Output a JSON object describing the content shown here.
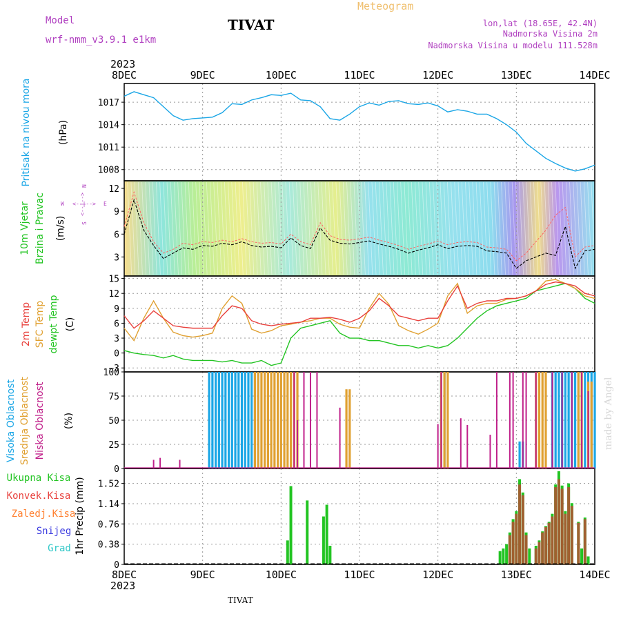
{
  "header": {
    "model_label": "Model",
    "model_name": "wrf-nmm_v3.9.1  e1km",
    "station": "TIVAT",
    "product": "Meteogram",
    "lonlat": "lon,lat (18.65E, 42.4N)",
    "altitude": "Nadmorska Visina 2m",
    "model_altitude": "Nadmorska Visina u modelu 111.528m",
    "watermark": "made by Angel",
    "footer_station": "TIVAT"
  },
  "colors": {
    "pressure": "#1aa6e6",
    "temp2m": "#e8403c",
    "sfc_temp": "#e0a030",
    "dewpoint": "#22c422",
    "high_cloud": "#1aa6e6",
    "mid_cloud": "#e0a030",
    "low_cloud": "#c0208a",
    "total_precip": "#22c422",
    "conv_precip": "#e8403c",
    "frozen_precip": "#ff8030",
    "snow": "#3a3ae0",
    "hail": "#30c8c8",
    "title_purple": "#b040c0",
    "meteogram_orange": "#f0c070"
  },
  "time_axis": {
    "year": "2023",
    "labels": [
      "8DEC",
      "9DEC",
      "10DEC",
      "11DEC",
      "12DEC",
      "13DEC",
      "14DEC"
    ]
  },
  "chart_data": [
    {
      "type": "line",
      "panel": "pressure",
      "ylabel": "Pritisak na nivou mora",
      "unit": "(hPa)",
      "ylim": [
        1006.5,
        1019.5
      ],
      "yticks": [
        "1017",
        "1014",
        "1011",
        "1008"
      ],
      "ytick_values": [
        1017,
        1014,
        1011,
        1008
      ],
      "x_hours": [
        0,
        3,
        6,
        9,
        12,
        15,
        18,
        21,
        24,
        27,
        30,
        33,
        36,
        39,
        42,
        45,
        48,
        51,
        54,
        57,
        60,
        63,
        66,
        69,
        72,
        75,
        78,
        81,
        84,
        87,
        90,
        93,
        96,
        99,
        102,
        105,
        108,
        111,
        114,
        117,
        120,
        123,
        126,
        129,
        132,
        135,
        138,
        141,
        144
      ],
      "series": [
        {
          "values": [
            1017.8,
            1018.4,
            1018.0,
            1017.6,
            1016.4,
            1015.2,
            1014.6,
            1014.8,
            1014.9,
            1015.0,
            1015.6,
            1016.8,
            1016.7,
            1017.3,
            1017.6,
            1018.0,
            1017.9,
            1018.2,
            1017.3,
            1017.2,
            1016.4,
            1014.8,
            1014.6,
            1015.4,
            1016.4,
            1016.9,
            1016.6,
            1017.1,
            1017.2,
            1016.8,
            1016.7,
            1016.9,
            1016.5,
            1015.7,
            1016.0,
            1015.8,
            1015.4,
            1015.4,
            1014.8,
            1014.0,
            1013.0,
            1011.5,
            1010.5,
            1009.5,
            1008.8,
            1008.2,
            1007.8,
            1008.1,
            1008.6
          ]
        }
      ]
    },
    {
      "type": "line",
      "panel": "wind",
      "ylabel": "10m Vjetar",
      "ylabel2": "Brzina i Pravac",
      "unit": "(m/s)",
      "compass": {
        "n": "N",
        "s": "S",
        "e": "E",
        "w": "W",
        "arrows": "<--|-->"
      },
      "ylim": [
        0.5,
        13
      ],
      "yticks": [
        "12",
        "9",
        "6",
        "3"
      ],
      "ytick_values": [
        12,
        9,
        6,
        3
      ],
      "x_hours": [
        0,
        3,
        6,
        9,
        12,
        15,
        18,
        21,
        24,
        27,
        30,
        33,
        36,
        39,
        42,
        45,
        48,
        51,
        54,
        57,
        60,
        63,
        66,
        69,
        72,
        75,
        78,
        81,
        84,
        87,
        90,
        93,
        96,
        99,
        102,
        105,
        108,
        111,
        114,
        117,
        120,
        123,
        126,
        129,
        132,
        135,
        138,
        141,
        144
      ],
      "series": [
        {
          "values": [
            6.0,
            10.5,
            6.5,
            4.5,
            2.8,
            3.5,
            4.2,
            4.0,
            4.5,
            4.4,
            4.8,
            4.6,
            5.0,
            4.5,
            4.3,
            4.4,
            4.2,
            5.5,
            4.5,
            4.1,
            6.8,
            5.2,
            4.8,
            4.7,
            4.9,
            5.1,
            4.7,
            4.4,
            4.0,
            3.5,
            3.9,
            4.2,
            4.6,
            4.1,
            4.4,
            4.5,
            4.4,
            3.8,
            3.7,
            3.5,
            1.5,
            2.5,
            3.0,
            3.5,
            3.2,
            7.0,
            1.5,
            3.8,
            4.0
          ]
        },
        {
          "values": [
            7.0,
            11.5,
            7.5,
            5.0,
            3.5,
            4.0,
            4.8,
            4.6,
            5.0,
            4.9,
            5.2,
            5.0,
            5.4,
            5.0,
            4.8,
            4.9,
            4.7,
            6.0,
            5.0,
            4.6,
            7.5,
            5.8,
            5.3,
            5.2,
            5.4,
            5.6,
            5.2,
            4.9,
            4.5,
            4.0,
            4.4,
            4.7,
            5.1,
            4.6,
            4.9,
            5.0,
            4.9,
            4.3,
            4.2,
            4.0,
            2.5,
            3.5,
            5.0,
            6.5,
            8.5,
            9.5,
            3.0,
            4.3,
            4.5
          ]
        }
      ]
    },
    {
      "type": "line",
      "panel": "temperature",
      "ylabel": "2m Temp",
      "ylabel2": "SFC Temp",
      "ylabel3": "dewpt Temp",
      "unit": "(C)",
      "ylim": [
        -3.8,
        15.5
      ],
      "yticks": [
        "15",
        "12",
        "9",
        "6",
        "3",
        "0",
        "−3"
      ],
      "ytick_values": [
        15,
        12,
        9,
        6,
        3,
        0,
        -3
      ],
      "x_hours": [
        0,
        3,
        6,
        9,
        12,
        15,
        18,
        21,
        24,
        27,
        30,
        33,
        36,
        39,
        42,
        45,
        48,
        51,
        54,
        57,
        60,
        63,
        66,
        69,
        72,
        75,
        78,
        81,
        84,
        87,
        90,
        93,
        96,
        99,
        102,
        105,
        108,
        111,
        114,
        117,
        120,
        123,
        126,
        129,
        132,
        135,
        138,
        141,
        144
      ],
      "series": [
        {
          "values": [
            7.5,
            5.0,
            6.5,
            8.5,
            7.0,
            5.5,
            5.2,
            5.0,
            5.0,
            5.0,
            7.5,
            9.5,
            9.0,
            6.5,
            5.8,
            5.5,
            5.8,
            6.0,
            6.2,
            7.0,
            7.0,
            7.2,
            6.8,
            6.2,
            7.0,
            8.5,
            11.0,
            9.5,
            7.5,
            7.0,
            6.5,
            7.0,
            7.0,
            10.5,
            13.5,
            9.0,
            10.0,
            10.5,
            10.5,
            11.0,
            11.0,
            11.5,
            12.5,
            13.8,
            14.3,
            14.0,
            13.5,
            12.0,
            11.5
          ]
        },
        {
          "values": [
            5.0,
            2.5,
            7.0,
            10.5,
            7.0,
            4.2,
            3.5,
            3.2,
            3.5,
            4.0,
            9.0,
            11.5,
            10.0,
            4.8,
            4.0,
            4.5,
            5.5,
            5.8,
            6.2,
            6.5,
            7.0,
            7.0,
            5.8,
            5.2,
            5.0,
            9.0,
            12.0,
            9.8,
            5.5,
            4.5,
            3.8,
            4.8,
            6.0,
            11.5,
            14.0,
            8.0,
            9.5,
            10.0,
            10.0,
            10.8,
            11.0,
            11.5,
            12.5,
            14.5,
            14.8,
            14.0,
            13.0,
            11.5,
            11.0
          ]
        },
        {
          "values": [
            0.5,
            0.0,
            -0.3,
            -0.5,
            -1.0,
            -0.5,
            -1.2,
            -1.5,
            -1.5,
            -1.5,
            -1.8,
            -1.5,
            -2.0,
            -2.0,
            -1.5,
            -2.5,
            -2.0,
            3.0,
            5.0,
            5.5,
            6.0,
            6.5,
            4.0,
            3.0,
            3.0,
            2.5,
            2.5,
            2.0,
            1.5,
            1.5,
            1.0,
            1.5,
            1.0,
            1.5,
            3.0,
            5.0,
            7.0,
            8.5,
            9.5,
            10.0,
            10.5,
            11.0,
            12.5,
            13.0,
            13.5,
            14.0,
            13.0,
            11.0,
            10.0
          ]
        }
      ]
    },
    {
      "type": "bar",
      "panel": "cloud",
      "ylabel": "Visoka Oblacnost",
      "ylabel2": "Srednja Oblacnost",
      "ylabel3": "Niska Oblacnost",
      "unit": "(%)",
      "ylim": [
        0,
        100
      ],
      "yticks": [
        "100",
        "75",
        "50",
        "25",
        "0"
      ],
      "ytick_values": [
        100,
        75,
        50,
        25,
        0
      ],
      "series": [
        {
          "name": "high",
          "ranges": [
            [
              26,
              41,
              100
            ],
            [
              97,
              98,
              100
            ],
            [
              121,
              122,
              28
            ],
            [
              131,
              133,
              100
            ],
            [
              134,
              138,
              100
            ],
            [
              139,
              140,
              100
            ],
            [
              141,
              142,
              100
            ],
            [
              143,
              144,
              100
            ]
          ]
        },
        {
          "name": "mid",
          "ranges": [
            [
              40,
              53,
              100
            ],
            [
              68,
              69,
              82
            ],
            [
              97,
              99,
              100
            ],
            [
              126,
              129,
              100
            ],
            [
              139,
              140,
              100
            ],
            [
              142,
              143,
              90
            ]
          ]
        },
        {
          "name": "low",
          "bars": [
            [
              9,
              9
            ],
            [
              11,
              11
            ],
            [
              17,
              9
            ],
            [
              52,
              100
            ],
            [
              53,
              50
            ],
            [
              55,
              100
            ],
            [
              57,
              100
            ],
            [
              59,
              100
            ],
            [
              66,
              63
            ],
            [
              96,
              46
            ],
            [
              97,
              100
            ],
            [
              103,
              52
            ],
            [
              105,
              45
            ],
            [
              112,
              35
            ],
            [
              114,
              100
            ],
            [
              118,
              100
            ],
            [
              119,
              100
            ],
            [
              122,
              100
            ],
            [
              123,
              100
            ],
            [
              126,
              100
            ],
            [
              131,
              100
            ],
            [
              134,
              100
            ],
            [
              137,
              100
            ],
            [
              140,
              100
            ],
            [
              142,
              80
            ]
          ]
        }
      ]
    },
    {
      "type": "bar",
      "panel": "precip",
      "ylabel": "1hr Precip",
      "unit": "(mm)",
      "ylim": [
        0,
        1.8
      ],
      "yticks": [
        "1.52",
        "1.14",
        "0.76",
        "0.38",
        "0"
      ],
      "ytick_values": [
        1.52,
        1.14,
        0.76,
        0.38,
        0
      ],
      "legend": [
        "Ukupna Kisa",
        "Konvek.Kisa",
        "Zaledj.Kisa",
        "Snijeg",
        "Grad"
      ],
      "series": [
        {
          "name": "Ukupna Kisa",
          "bars": [
            [
              50,
              0.45
            ],
            [
              51,
              1.47
            ],
            [
              56,
              1.2
            ],
            [
              61,
              0.9
            ],
            [
              62,
              1.12
            ],
            [
              63,
              0.35
            ],
            [
              115,
              0.25
            ],
            [
              116,
              0.3
            ],
            [
              117,
              0.38
            ],
            [
              118,
              0.6
            ],
            [
              119,
              0.85
            ],
            [
              120,
              1.0
            ],
            [
              121,
              1.6
            ],
            [
              122,
              1.35
            ],
            [
              123,
              0.6
            ],
            [
              124,
              0.3
            ],
            [
              126,
              0.35
            ],
            [
              127,
              0.45
            ],
            [
              128,
              0.62
            ],
            [
              129,
              0.72
            ],
            [
              130,
              0.8
            ],
            [
              131,
              0.95
            ],
            [
              132,
              1.5
            ],
            [
              133,
              1.75
            ],
            [
              134,
              1.48
            ],
            [
              135,
              1.0
            ],
            [
              136,
              1.52
            ],
            [
              137,
              1.15
            ],
            [
              139,
              0.8
            ],
            [
              140,
              0.3
            ],
            [
              141,
              0.88
            ],
            [
              142,
              0.15
            ]
          ]
        },
        {
          "name": "Konvek.Kisa",
          "bars": [
            [
              118,
              0.55
            ],
            [
              119,
              0.8
            ],
            [
              120,
              0.95
            ],
            [
              121,
              1.5
            ],
            [
              122,
              1.3
            ],
            [
              123,
              0.55
            ],
            [
              126,
              0.3
            ],
            [
              127,
              0.42
            ],
            [
              128,
              0.6
            ],
            [
              129,
              0.7
            ],
            [
              130,
              0.78
            ],
            [
              131,
              0.9
            ],
            [
              132,
              1.45
            ],
            [
              133,
              1.6
            ],
            [
              134,
              1.42
            ],
            [
              135,
              0.95
            ],
            [
              136,
              1.45
            ],
            [
              137,
              1.1
            ],
            [
              139,
              0.78
            ],
            [
              141,
              0.85
            ]
          ]
        }
      ]
    }
  ]
}
